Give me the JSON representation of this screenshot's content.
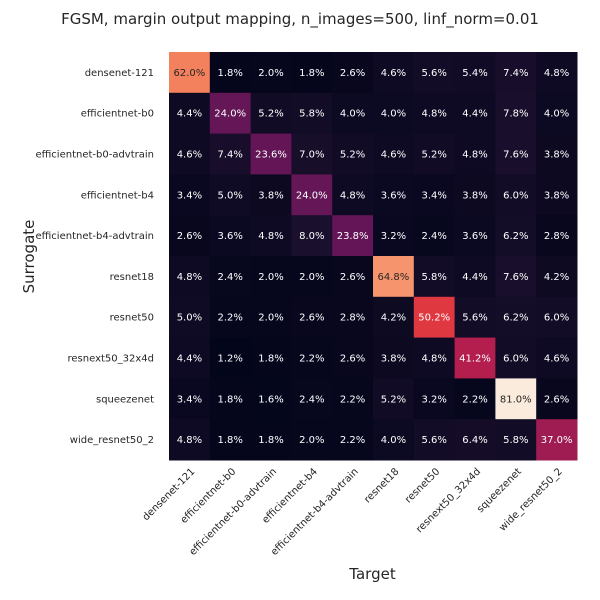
{
  "chart_data": {
    "type": "heatmap",
    "title": "FGSM, margin output mapping, n_images=500, linf_norm=0.01",
    "xlabel": "Target",
    "ylabel": "Surrogate",
    "x_categories": [
      "densenet-121",
      "efficientnet-b0",
      "efficientnet-b0-advtrain",
      "efficientnet-b4",
      "efficientnet-b4-advtrain",
      "resnet18",
      "resnet50",
      "resnext50_32x4d",
      "squeezenet",
      "wide_resnet50_2"
    ],
    "y_categories": [
      "densenet-121",
      "efficientnet-b0",
      "efficientnet-b0-advtrain",
      "efficientnet-b4",
      "efficientnet-b4-advtrain",
      "resnet18",
      "resnet50",
      "resnext50_32x4d",
      "squeezenet",
      "wide_resnet50_2"
    ],
    "values": [
      [
        62.0,
        1.8,
        2.0,
        1.8,
        2.6,
        4.6,
        5.6,
        5.4,
        7.4,
        4.8
      ],
      [
        4.4,
        24.0,
        5.2,
        5.8,
        4.0,
        4.0,
        4.8,
        4.4,
        7.8,
        4.0
      ],
      [
        4.6,
        7.4,
        23.6,
        7.0,
        5.2,
        4.6,
        5.2,
        4.8,
        7.6,
        3.8
      ],
      [
        3.4,
        5.0,
        3.8,
        24.0,
        4.8,
        3.6,
        3.4,
        3.8,
        6.0,
        3.8
      ],
      [
        2.6,
        3.6,
        4.8,
        8.0,
        23.8,
        3.2,
        2.4,
        3.6,
        6.2,
        2.8
      ],
      [
        4.8,
        2.4,
        2.0,
        2.0,
        2.6,
        64.8,
        5.8,
        4.4,
        7.6,
        4.2
      ],
      [
        5.0,
        2.2,
        2.0,
        2.6,
        2.8,
        4.2,
        50.2,
        5.6,
        6.2,
        6.0
      ],
      [
        4.4,
        1.2,
        1.8,
        2.2,
        2.6,
        3.8,
        4.8,
        41.2,
        6.0,
        4.6
      ],
      [
        3.4,
        1.8,
        1.6,
        2.4,
        2.2,
        5.2,
        3.2,
        2.2,
        81.0,
        2.6
      ],
      [
        4.8,
        1.8,
        1.8,
        2.0,
        2.2,
        4.0,
        5.6,
        6.4,
        5.8,
        37.0
      ]
    ],
    "value_suffix": "%",
    "colormap": "rocket",
    "vmin": 1.2,
    "vmax": 81.0,
    "grid": false,
    "colorbar": false
  }
}
